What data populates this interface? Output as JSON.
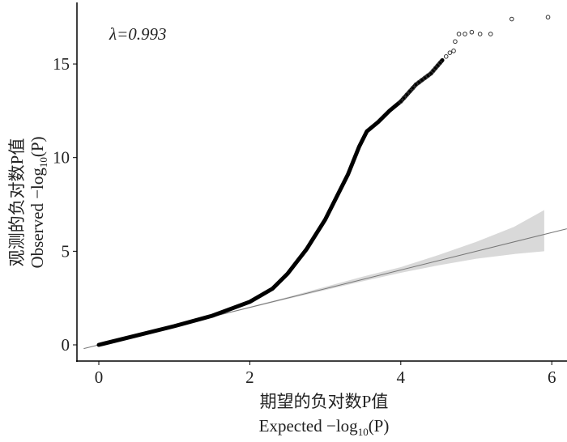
{
  "chart_data": {
    "type": "scatter",
    "title": "",
    "annotation": "λ=0.993",
    "xlabel_cn": "期望的负对数P值",
    "xlabel_en": "Expected −log10(P)",
    "ylabel_cn": "观测的负对数P值",
    "ylabel_en": "Observed −log10(P)",
    "xlim": [
      -0.2,
      6.2
    ],
    "ylim": [
      -0.3,
      18.2
    ],
    "xticks": [
      "0",
      "2",
      "4",
      "6"
    ],
    "yticks": [
      "0",
      "5",
      "10",
      "15"
    ],
    "xtick_values": [
      0,
      2,
      4,
      6
    ],
    "ytick_values": [
      0,
      5,
      10,
      15
    ],
    "grid": false,
    "reference_line": {
      "slope": 1,
      "intercept": 0
    },
    "confidence_band": {
      "x": [
        1.5,
        2.5,
        3.5,
        4.0,
        4.5,
        5.0,
        5.5,
        5.9
      ],
      "lower": [
        1.48,
        2.45,
        3.4,
        3.85,
        4.25,
        4.6,
        4.85,
        5.0
      ],
      "upper": [
        1.52,
        2.55,
        3.65,
        4.15,
        4.8,
        5.5,
        6.3,
        7.2
      ]
    },
    "observed_curve": {
      "x": [
        0,
        0.5,
        1.0,
        1.5,
        2.0,
        2.3,
        2.5,
        2.75,
        3.0,
        3.15,
        3.3,
        3.45,
        3.55,
        3.7,
        3.85,
        4.0,
        4.2,
        4.4,
        4.55
      ],
      "y": [
        0,
        0.5,
        1.0,
        1.55,
        2.3,
        3.0,
        3.8,
        5.1,
        6.7,
        7.9,
        9.1,
        10.6,
        11.4,
        11.9,
        12.5,
        13.0,
        13.9,
        14.5,
        15.2
      ]
    },
    "tail_points": {
      "x": [
        4.6,
        4.65,
        4.7,
        4.72,
        4.77,
        4.85,
        4.94,
        5.05,
        5.19,
        5.47,
        5.95
      ],
      "y": [
        15.4,
        15.6,
        15.7,
        16.2,
        16.6,
        16.6,
        16.7,
        16.6,
        16.6,
        17.4,
        17.5
      ]
    }
  }
}
